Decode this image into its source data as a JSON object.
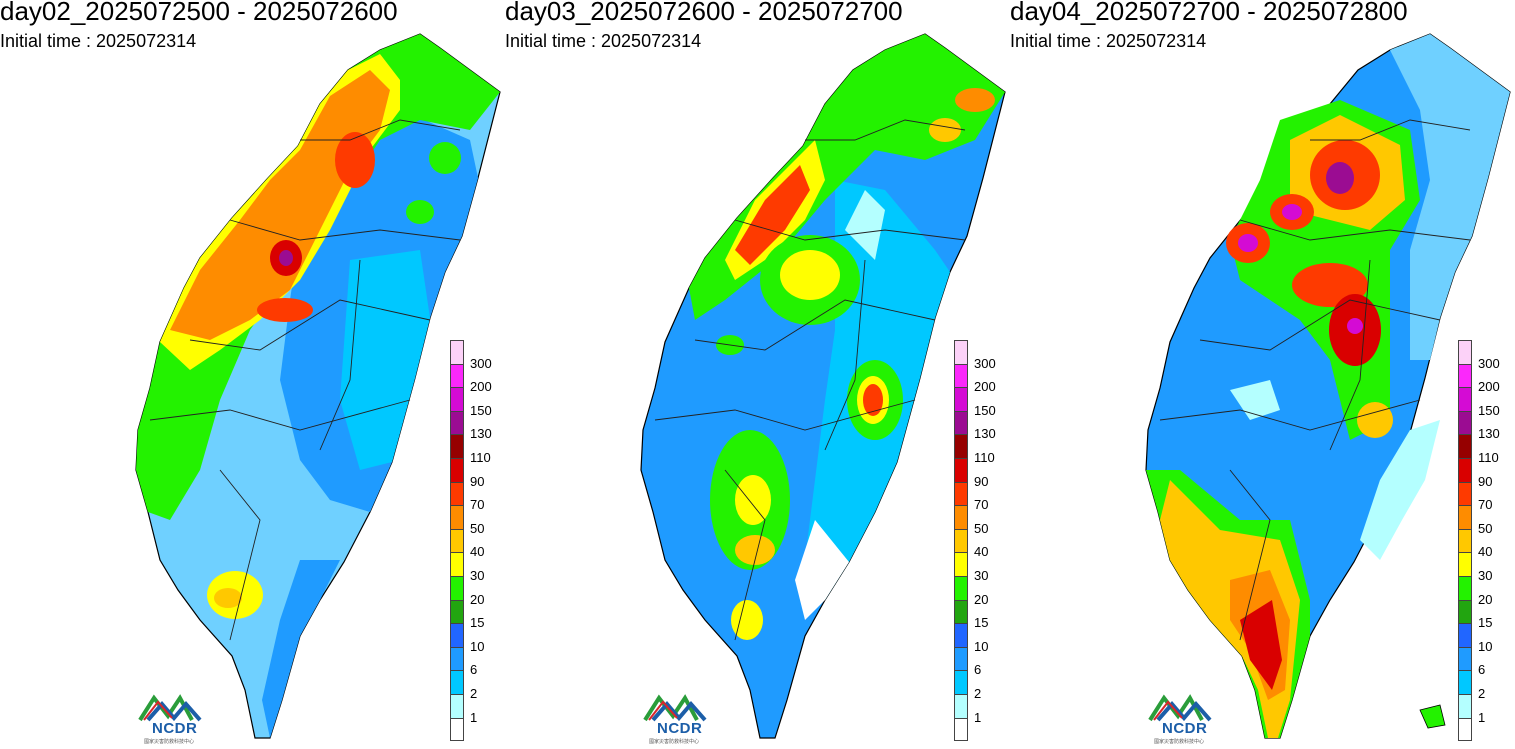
{
  "panels": [
    {
      "title": "day02_2025072500 - 2025072600",
      "subtitle": "Initial time : 2025072314"
    },
    {
      "title": "day03_2025072600 - 2025072700",
      "subtitle": "Initial time : 2025072314"
    },
    {
      "title": "day04_2025072700 - 2025072800",
      "subtitle": "Initial time : 2025072314"
    }
  ],
  "legend": {
    "labels": [
      "300",
      "200",
      "150",
      "130",
      "110",
      "90",
      "70",
      "50",
      "40",
      "30",
      "20",
      "15",
      "10",
      "6",
      "2",
      "1"
    ],
    "colors": [
      "#fcd2f8",
      "#fb28fb",
      "#d40bd4",
      "#9b0c92",
      "#960000",
      "#d90000",
      "#fe3a00",
      "#fe8c00",
      "#ffc800",
      "#ffff00",
      "#23f200",
      "#22a510",
      "#2166ff",
      "#1f9bff",
      "#00c8ff",
      "#b4ffff",
      "#ffffff"
    ]
  },
  "logo": {
    "name": "NCDR",
    "subtitle": "國家災害防救科技中心"
  }
}
